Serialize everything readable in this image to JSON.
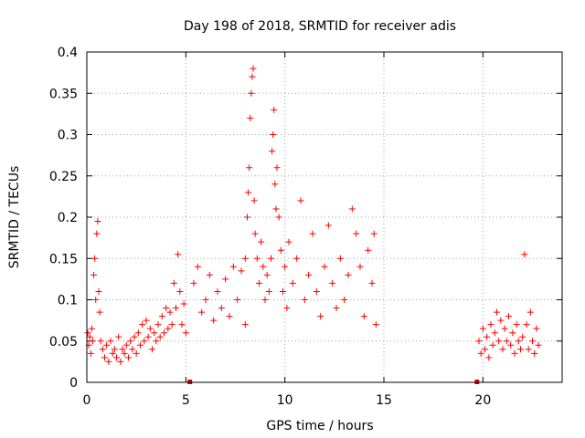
{
  "chart_data": {
    "type": "scatter",
    "title": "Day 198 of 2018, SRMTID for receiver adis",
    "xlabel": "GPS time / hours",
    "ylabel": "SRMTID / TECUs",
    "xlim": [
      0,
      24
    ],
    "ylim": [
      0,
      0.4
    ],
    "xticks": [
      0,
      5,
      10,
      15,
      20
    ],
    "xtick_labels": [
      "0",
      "5",
      "10",
      "15",
      "20"
    ],
    "yticks": [
      0,
      0.05,
      0.1,
      0.15,
      0.2,
      0.25,
      0.3,
      0.35,
      0.4
    ],
    "ytick_labels": [
      "0",
      "0.05",
      "0.1",
      "0.15",
      "0.2",
      "0.25",
      "0.3",
      "0.35",
      "0.4"
    ],
    "grid": true,
    "marker": "+",
    "color": "#ff0000",
    "zero_markers": [
      5.2,
      19.7
    ],
    "series": [
      {
        "name": "SRMTID",
        "points": [
          [
            0.05,
            0.06
          ],
          [
            0.1,
            0.045
          ],
          [
            0.15,
            0.055
          ],
          [
            0.2,
            0.035
          ],
          [
            0.25,
            0.065
          ],
          [
            0.3,
            0.05
          ],
          [
            0.35,
            0.13
          ],
          [
            0.4,
            0.15
          ],
          [
            0.45,
            0.1
          ],
          [
            0.5,
            0.18
          ],
          [
            0.55,
            0.195
          ],
          [
            0.6,
            0.11
          ],
          [
            0.65,
            0.085
          ],
          [
            0.7,
            0.05
          ],
          [
            0.8,
            0.04
          ],
          [
            0.9,
            0.03
          ],
          [
            1.0,
            0.045
          ],
          [
            1.1,
            0.025
          ],
          [
            1.2,
            0.05
          ],
          [
            1.3,
            0.035
          ],
          [
            1.4,
            0.04
          ],
          [
            1.5,
            0.03
          ],
          [
            1.6,
            0.055
          ],
          [
            1.7,
            0.025
          ],
          [
            1.8,
            0.04
          ],
          [
            1.9,
            0.035
          ],
          [
            2.0,
            0.045
          ],
          [
            2.1,
            0.03
          ],
          [
            2.2,
            0.05
          ],
          [
            2.3,
            0.04
          ],
          [
            2.4,
            0.055
          ],
          [
            2.5,
            0.035
          ],
          [
            2.6,
            0.06
          ],
          [
            2.7,
            0.045
          ],
          [
            2.8,
            0.07
          ],
          [
            2.9,
            0.05
          ],
          [
            3.0,
            0.075
          ],
          [
            3.1,
            0.055
          ],
          [
            3.2,
            0.065
          ],
          [
            3.3,
            0.04
          ],
          [
            3.4,
            0.06
          ],
          [
            3.5,
            0.05
          ],
          [
            3.6,
            0.07
          ],
          [
            3.7,
            0.055
          ],
          [
            3.8,
            0.08
          ],
          [
            3.9,
            0.06
          ],
          [
            4.0,
            0.09
          ],
          [
            4.1,
            0.065
          ],
          [
            4.2,
            0.085
          ],
          [
            4.3,
            0.07
          ],
          [
            4.4,
            0.12
          ],
          [
            4.5,
            0.09
          ],
          [
            4.6,
            0.155
          ],
          [
            4.7,
            0.11
          ],
          [
            4.8,
            0.07
          ],
          [
            4.9,
            0.095
          ],
          [
            5.0,
            0.06
          ],
          [
            5.4,
            0.12
          ],
          [
            5.6,
            0.14
          ],
          [
            5.8,
            0.085
          ],
          [
            6.0,
            0.1
          ],
          [
            6.2,
            0.13
          ],
          [
            6.4,
            0.075
          ],
          [
            6.6,
            0.11
          ],
          [
            6.8,
            0.09
          ],
          [
            7.0,
            0.125
          ],
          [
            7.2,
            0.08
          ],
          [
            7.4,
            0.14
          ],
          [
            7.6,
            0.1
          ],
          [
            7.8,
            0.135
          ],
          [
            8.0,
            0.07
          ],
          [
            8.0,
            0.15
          ],
          [
            8.1,
            0.2
          ],
          [
            8.15,
            0.23
          ],
          [
            8.2,
            0.26
          ],
          [
            8.25,
            0.32
          ],
          [
            8.3,
            0.35
          ],
          [
            8.35,
            0.37
          ],
          [
            8.4,
            0.38
          ],
          [
            8.45,
            0.22
          ],
          [
            8.5,
            0.18
          ],
          [
            8.6,
            0.15
          ],
          [
            8.7,
            0.12
          ],
          [
            8.8,
            0.17
          ],
          [
            8.9,
            0.14
          ],
          [
            9.0,
            0.1
          ],
          [
            9.1,
            0.13
          ],
          [
            9.2,
            0.11
          ],
          [
            9.3,
            0.15
          ],
          [
            9.35,
            0.28
          ],
          [
            9.4,
            0.3
          ],
          [
            9.45,
            0.33
          ],
          [
            9.5,
            0.24
          ],
          [
            9.55,
            0.21
          ],
          [
            9.6,
            0.26
          ],
          [
            9.7,
            0.2
          ],
          [
            9.8,
            0.16
          ],
          [
            9.9,
            0.11
          ],
          [
            10.0,
            0.14
          ],
          [
            10.1,
            0.09
          ],
          [
            10.2,
            0.17
          ],
          [
            10.4,
            0.12
          ],
          [
            10.6,
            0.15
          ],
          [
            10.8,
            0.22
          ],
          [
            11.0,
            0.1
          ],
          [
            11.2,
            0.13
          ],
          [
            11.4,
            0.18
          ],
          [
            11.6,
            0.11
          ],
          [
            11.8,
            0.08
          ],
          [
            12.0,
            0.14
          ],
          [
            12.2,
            0.19
          ],
          [
            12.4,
            0.12
          ],
          [
            12.6,
            0.09
          ],
          [
            12.8,
            0.15
          ],
          [
            13.0,
            0.1
          ],
          [
            13.2,
            0.13
          ],
          [
            13.4,
            0.21
          ],
          [
            13.6,
            0.18
          ],
          [
            13.8,
            0.14
          ],
          [
            14.0,
            0.08
          ],
          [
            14.2,
            0.16
          ],
          [
            14.4,
            0.12
          ],
          [
            14.5,
            0.18
          ],
          [
            14.6,
            0.07
          ],
          [
            19.8,
            0.05
          ],
          [
            19.9,
            0.035
          ],
          [
            20.0,
            0.065
          ],
          [
            20.1,
            0.04
          ],
          [
            20.2,
            0.055
          ],
          [
            20.3,
            0.03
          ],
          [
            20.4,
            0.07
          ],
          [
            20.5,
            0.045
          ],
          [
            20.6,
            0.06
          ],
          [
            20.7,
            0.085
          ],
          [
            20.8,
            0.05
          ],
          [
            20.9,
            0.075
          ],
          [
            21.0,
            0.04
          ],
          [
            21.1,
            0.065
          ],
          [
            21.2,
            0.05
          ],
          [
            21.3,
            0.08
          ],
          [
            21.4,
            0.045
          ],
          [
            21.5,
            0.06
          ],
          [
            21.6,
            0.035
          ],
          [
            21.7,
            0.07
          ],
          [
            21.8,
            0.05
          ],
          [
            21.9,
            0.04
          ],
          [
            22.0,
            0.055
          ],
          [
            22.1,
            0.155
          ],
          [
            22.2,
            0.07
          ],
          [
            22.3,
            0.04
          ],
          [
            22.4,
            0.085
          ],
          [
            22.5,
            0.05
          ],
          [
            22.6,
            0.035
          ],
          [
            22.7,
            0.065
          ],
          [
            22.8,
            0.045
          ]
        ]
      }
    ]
  }
}
